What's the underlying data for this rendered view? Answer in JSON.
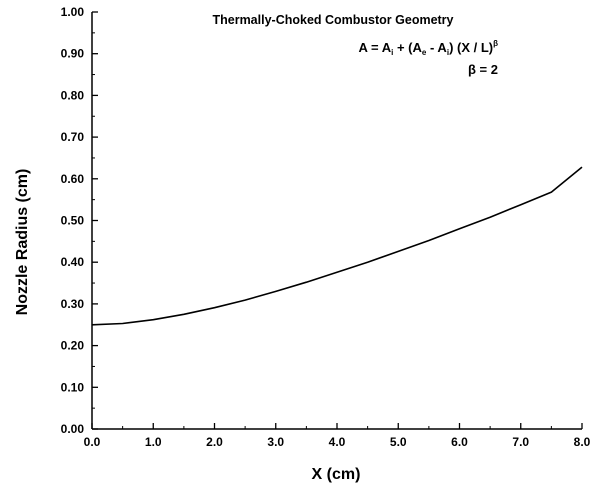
{
  "chart_data": {
    "type": "line",
    "title": "Thermally-Choked Combustor Geometry",
    "xlabel": "X (cm)",
    "ylabel": "Nozzle Radius (cm)",
    "xlim": [
      0.0,
      8.0
    ],
    "ylim": [
      0.0,
      1.0
    ],
    "x_ticks": [
      "0.0",
      "1.0",
      "2.0",
      "3.0",
      "4.0",
      "5.0",
      "6.0",
      "7.0",
      "8.0"
    ],
    "y_ticks": [
      "0.00",
      "0.10",
      "0.20",
      "0.30",
      "0.40",
      "0.50",
      "0.60",
      "0.70",
      "0.80",
      "0.90",
      "1.00"
    ],
    "grid": false,
    "annotations": {
      "equation": {
        "lhs": "A = A",
        "i1": "i",
        "plus": " + (A",
        "e": "e",
        "minus": " - A",
        "i2": "i",
        "rest": ") (X / L)",
        "exp": "β"
      },
      "beta": "β = 2"
    },
    "series": [
      {
        "x": [
          0.0,
          0.5,
          1.0,
          1.5,
          2.0,
          2.5,
          3.0,
          3.5,
          4.0,
          4.5,
          5.0,
          5.5,
          6.0,
          6.5,
          7.0,
          7.5,
          8.0
        ],
        "values": [
          0.25,
          0.253,
          0.262,
          0.275,
          0.291,
          0.309,
          0.33,
          0.352,
          0.376,
          0.4,
          0.426,
          0.452,
          0.48,
          0.508,
          0.538,
          0.568,
          0.628
        ]
      }
    ]
  }
}
